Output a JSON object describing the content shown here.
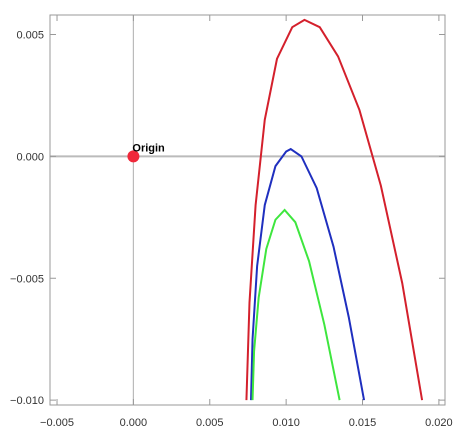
{
  "chart_data": {
    "type": "line",
    "xlim": [
      -0.00546,
      0.0204
    ],
    "ylim": [
      -0.0102,
      0.0058
    ],
    "xticks": [
      {
        "value": -0.005,
        "label": "−0.005"
      },
      {
        "value": 0,
        "label": "0.000"
      },
      {
        "value": 0.005,
        "label": "0.005"
      },
      {
        "value": 0.01,
        "label": "0.010"
      },
      {
        "value": 0.015,
        "label": "0.015"
      },
      {
        "value": 0.02,
        "label": "0.020"
      }
    ],
    "yticks": [
      {
        "value": -0.01,
        "label": "−0.010"
      },
      {
        "value": -0.005,
        "label": "−0.005"
      },
      {
        "value": 0,
        "label": "0.000"
      },
      {
        "value": 0.005,
        "label": "0.005"
      }
    ],
    "axes_color": "#bbbbbb",
    "series": [
      {
        "color": "#d4202c",
        "x": [
          0.0074,
          0.0076,
          0.008,
          0.0086,
          0.0094,
          0.0104,
          0.0112,
          0.0122,
          0.0134,
          0.0148,
          0.0162,
          0.0176,
          0.0189
        ],
        "values": [
          -0.01,
          -0.006,
          -0.002,
          0.0015,
          0.004,
          0.0053,
          0.0056,
          0.0053,
          0.0041,
          0.0019,
          -0.0012,
          -0.0052,
          -0.01
        ]
      },
      {
        "color": "#1f2fbf",
        "x": [
          0.0077,
          0.0078,
          0.0081,
          0.0086,
          0.0093,
          0.01,
          0.0103,
          0.011,
          0.012,
          0.0131,
          0.0141,
          0.0151
        ],
        "values": [
          -0.01,
          -0.0075,
          -0.0045,
          -0.002,
          -0.0004,
          0.0002,
          0.0003,
          0.0,
          -0.0013,
          -0.0037,
          -0.0066,
          -0.01
        ]
      },
      {
        "color": "#3ee63e",
        "x": [
          0.0078,
          0.0079,
          0.0082,
          0.0087,
          0.0093,
          0.0099,
          0.0106,
          0.0115,
          0.0125,
          0.0135
        ],
        "values": [
          -0.01,
          -0.008,
          -0.0058,
          -0.0038,
          -0.0026,
          -0.0022,
          -0.0027,
          -0.0043,
          -0.0069,
          -0.01
        ]
      }
    ],
    "points": [
      {
        "label": "Origin",
        "x": 0,
        "y": 0,
        "color": "#f0283a"
      }
    ]
  }
}
